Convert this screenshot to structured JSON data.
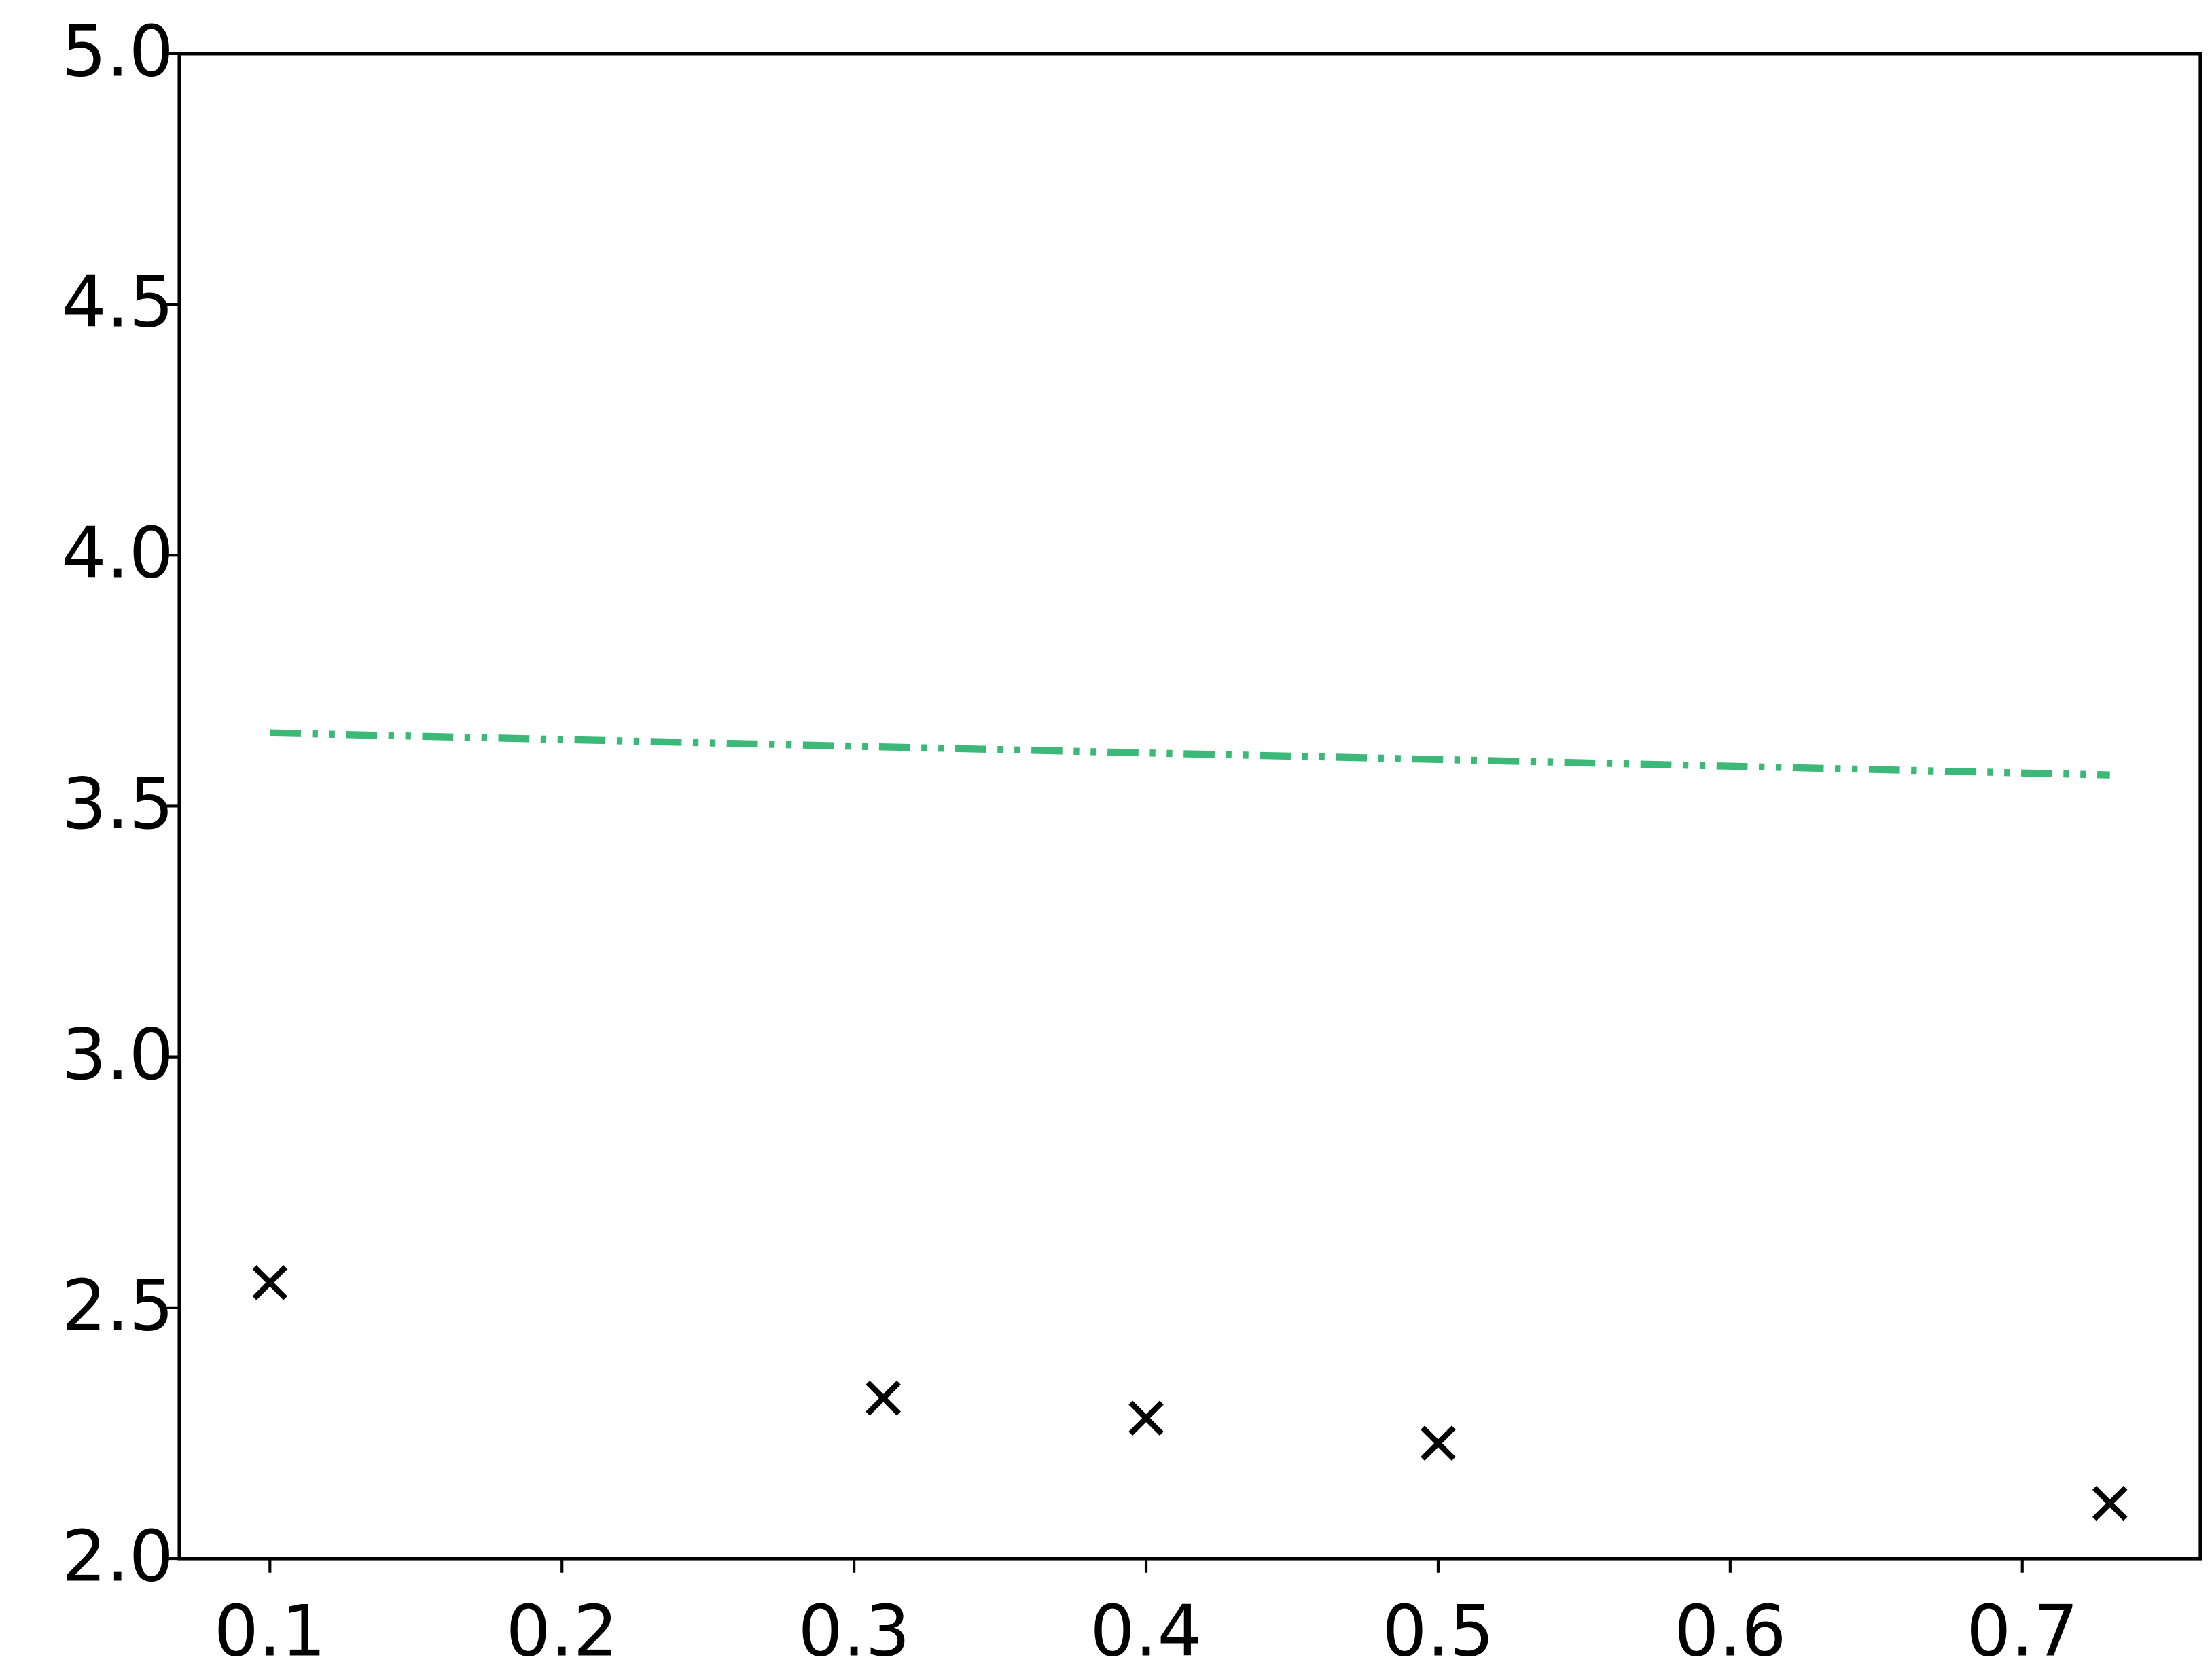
{
  "chart_data": {
    "type": "scatter",
    "x": [
      0.1,
      0.31,
      0.4,
      0.5,
      0.73
    ],
    "series": [
      {
        "type": "scatter",
        "marker": "x",
        "color": "#000000",
        "values": [
          2.55,
          2.32,
          2.28,
          2.23,
          2.11
        ]
      },
      {
        "type": "line",
        "linestyle": "dash-dot-dot",
        "color": "#3cb878",
        "values": [
          3.646,
          3.618,
          3.606,
          3.593,
          3.562
        ]
      }
    ],
    "xlim": [
      0.069,
      0.761
    ],
    "ylim": [
      2,
      5
    ],
    "xticks": [
      0.1,
      0.2,
      0.3,
      0.4,
      0.5,
      0.6,
      0.7
    ],
    "yticks": [
      {
        "value": 2,
        "label": "2.0"
      },
      2.5,
      {
        "value": 3,
        "label": "3.0"
      },
      3.5,
      {
        "value": 4,
        "label": "4.0"
      },
      4.5,
      {
        "value": 5,
        "label": "5.0"
      }
    ],
    "grid": false
  }
}
